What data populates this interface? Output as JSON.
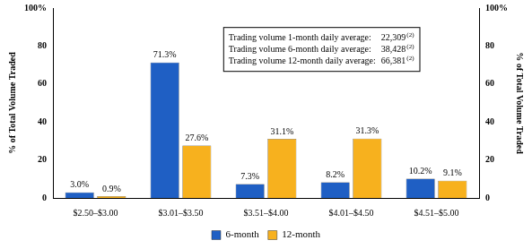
{
  "chart_data": {
    "type": "bar",
    "categories": [
      "$2.50–$3.00",
      "$3.01–$3.50",
      "$3.51–$4.00",
      "$4.01–$4.50",
      "$4.51–$5.00"
    ],
    "series": [
      {
        "name": "6-month",
        "color": "#1f5fc4",
        "values": [
          3.0,
          71.3,
          7.3,
          8.2,
          10.2
        ],
        "value_labels": [
          "3.0%",
          "71.3%",
          "7.3%",
          "8.2%",
          "10.2%"
        ]
      },
      {
        "name": "12-month",
        "color": "#f7b11e",
        "values": [
          0.9,
          27.6,
          31.1,
          31.3,
          9.1
        ],
        "value_labels": [
          "0.9%",
          "27.6%",
          "31.1%",
          "31.3%",
          "9.1%"
        ]
      }
    ],
    "ylabel": "% of Total Volume Traded",
    "y2label": "% of Total Volume Traded",
    "ylim": [
      0,
      100
    ],
    "yticks": [
      0,
      20,
      40,
      60,
      80,
      {
        "value": 100,
        "label": "100%"
      }
    ],
    "y2lim": [
      0,
      100
    ],
    "y2ticks": [
      0,
      20,
      40,
      60,
      80,
      {
        "value": 100,
        "label": "100%"
      }
    ],
    "grid": false,
    "legend": "bottom",
    "data_labels": true,
    "annotations": [
      {
        "text": "Trading volume 1-month daily average:",
        "value": "22,309",
        "note": "(2)"
      },
      {
        "text": "Trading volume 6-month daily average:",
        "value": "38,428",
        "note": "(2)"
      },
      {
        "text": "Trading volume 12-month daily average:",
        "value": "66,381",
        "note": "(2)"
      }
    ]
  }
}
